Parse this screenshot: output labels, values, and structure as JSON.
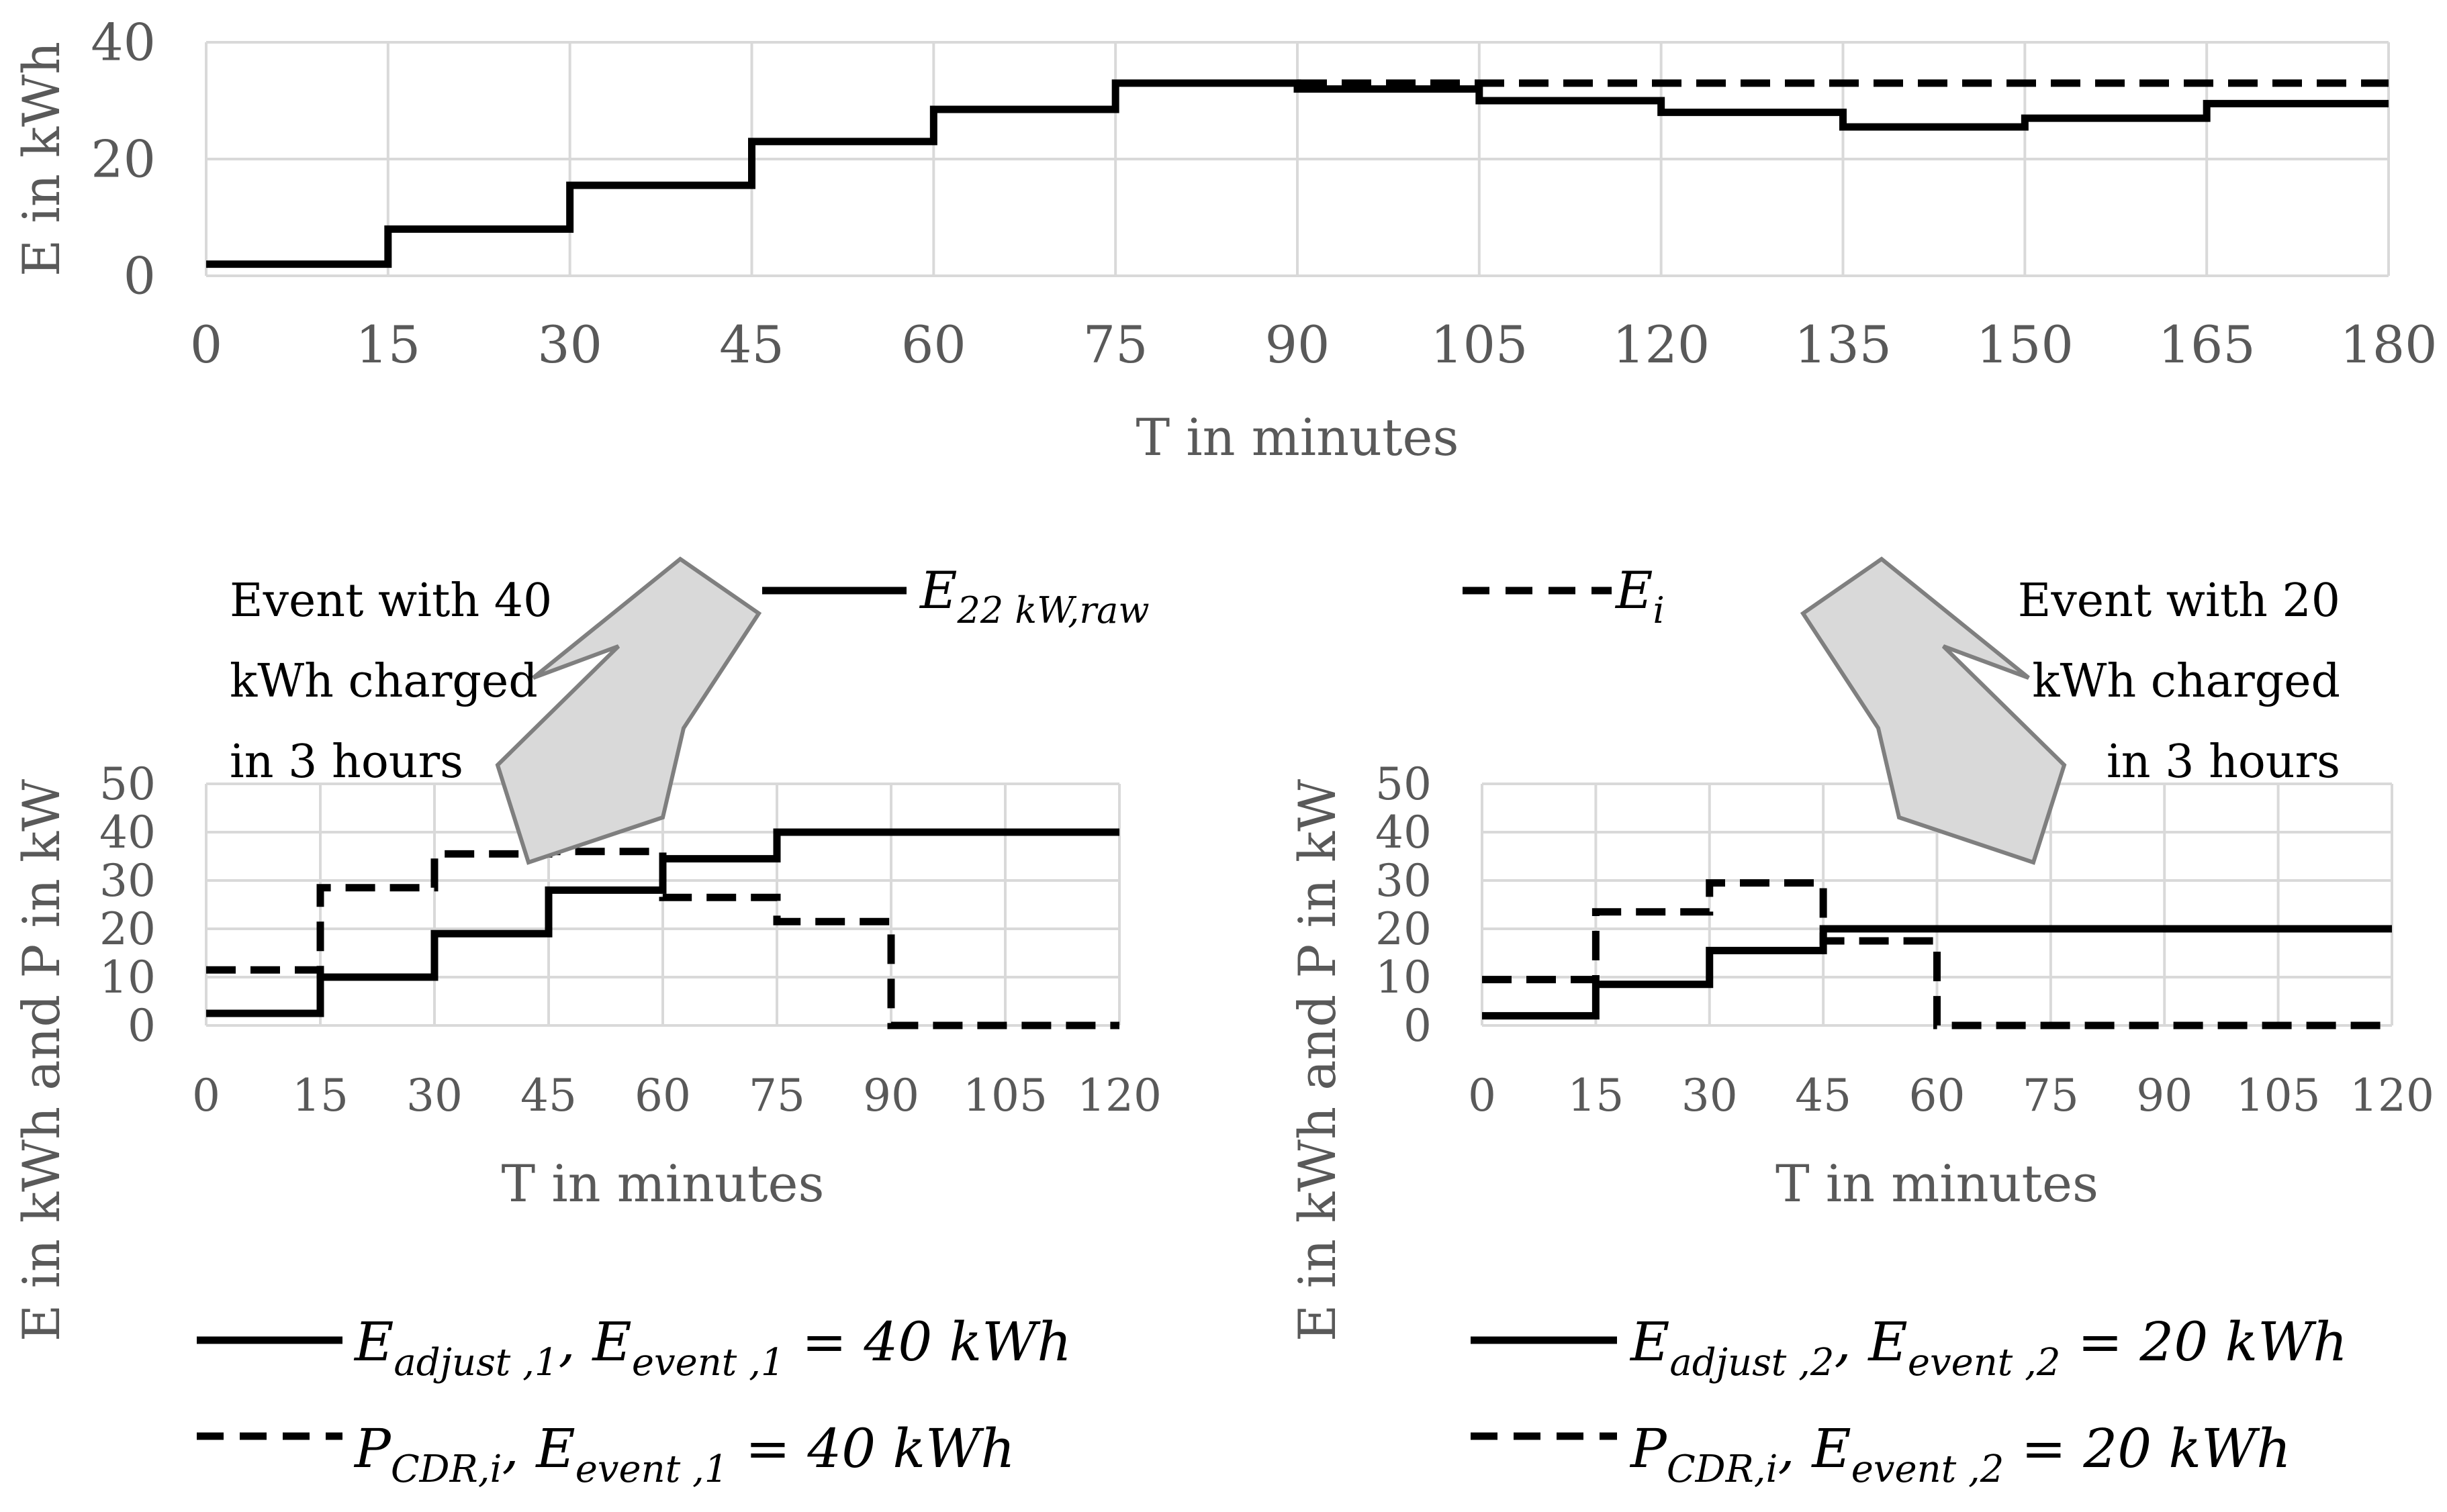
{
  "figure": {
    "annotations": {
      "left_event": [
        "Event with 40",
        "kWh charged",
        "in 3 hours"
      ],
      "right_event": [
        "Event with 20",
        "kWh charged",
        "in 3 hours"
      ]
    },
    "top_legend": {
      "raw_label": {
        "base": "E",
        "sub": "22 kW,raw"
      },
      "ei_label": {
        "base": "E",
        "sub": "i"
      }
    },
    "left_legend": {
      "solid": {
        "b1": "E",
        "s1": "adjust ,1",
        "mid": ", ",
        "b2": "E",
        "s2": "event ,1",
        "rest": " = 40 kWh"
      },
      "dashed": {
        "b1": "P",
        "s1": "CDR,i",
        "mid": ", ",
        "b2": "E",
        "s2": "event ,1",
        "rest": " = 40 kWh"
      }
    },
    "right_legend": {
      "solid": {
        "b1": "E",
        "s1": "adjust ,2",
        "mid": ", ",
        "b2": "E",
        "s2": "event ,2",
        "rest": " = 20 kWh"
      },
      "dashed": {
        "b1": "P",
        "s1": "CDR,i",
        "mid": ", ",
        "b2": "E",
        "s2": "event ,2",
        "rest": " = 20 kWh"
      }
    }
  },
  "chart_data": [
    {
      "type": "line",
      "step": true,
      "xlabel": "T in minutes",
      "ylabel": "E in kWh",
      "xlim": [
        0,
        180
      ],
      "ylim": [
        0,
        40
      ],
      "xticks": [
        0,
        15,
        30,
        45,
        60,
        75,
        90,
        105,
        120,
        135,
        150,
        165,
        180
      ],
      "yticks": [
        0,
        20,
        40
      ],
      "grid": true,
      "series": [
        {
          "name": "E22 kW,raw",
          "style": "solid",
          "color": "#000000",
          "x": [
            0,
            15,
            30,
            45,
            60,
            75,
            90,
            105,
            120,
            135,
            150,
            165,
            180
          ],
          "y": [
            2,
            8,
            15.5,
            23,
            28.5,
            33,
            32,
            30,
            28,
            25.5,
            27,
            29.5,
            29.5
          ]
        },
        {
          "name": "Ei",
          "style": "dashed",
          "color": "#000000",
          "x": [
            90,
            105,
            120,
            135,
            150,
            165,
            180
          ],
          "y": [
            33,
            33,
            33,
            33,
            33,
            33,
            33
          ]
        }
      ]
    },
    {
      "type": "line",
      "step": true,
      "xlabel": "T in minutes",
      "ylabel": "E in kWh and P in kW",
      "xlim": [
        0,
        120
      ],
      "ylim": [
        0,
        50
      ],
      "xticks": [
        0,
        15,
        30,
        45,
        60,
        75,
        90,
        105,
        120
      ],
      "yticks": [
        0,
        10,
        20,
        30,
        40,
        50
      ],
      "grid": true,
      "series": [
        {
          "name": "Eadjust,1, Eevent,1 = 40 kWh",
          "style": "solid",
          "color": "#000000",
          "x": [
            0,
            15,
            30,
            45,
            60,
            75,
            90,
            105,
            120
          ],
          "y": [
            2.5,
            10,
            19,
            28,
            34.5,
            40,
            40,
            40,
            40
          ]
        },
        {
          "name": "PCDR,i, Eevent,1 = 40 kWh",
          "style": "dashed",
          "color": "#000000",
          "x": [
            0,
            15,
            30,
            45,
            60,
            75,
            90,
            105,
            120
          ],
          "y": [
            11.5,
            28.5,
            35.5,
            36,
            26.5,
            21.5,
            0,
            0,
            0
          ]
        }
      ]
    },
    {
      "type": "line",
      "step": true,
      "xlabel": "T in minutes",
      "ylabel": "E in kWh and P in kW",
      "xlim": [
        0,
        120
      ],
      "ylim": [
        0,
        50
      ],
      "xticks": [
        0,
        15,
        30,
        45,
        60,
        75,
        90,
        105,
        120
      ],
      "yticks": [
        0,
        10,
        20,
        30,
        40,
        50
      ],
      "grid": true,
      "series": [
        {
          "name": "Eadjust,2, Eevent,2 = 20 kWh",
          "style": "solid",
          "color": "#000000",
          "x": [
            0,
            15,
            30,
            45,
            60,
            75,
            90,
            105,
            120
          ],
          "y": [
            2,
            8.5,
            15.5,
            20,
            20,
            20,
            20,
            20,
            20
          ]
        },
        {
          "name": "PCDR,i, Eevent,2 = 20 kWh",
          "style": "dashed",
          "color": "#000000",
          "x": [
            0,
            15,
            30,
            45,
            60,
            75,
            90,
            105,
            120
          ],
          "y": [
            9.5,
            23.5,
            29.5,
            17.5,
            0,
            0,
            0,
            0,
            0
          ]
        }
      ]
    }
  ]
}
